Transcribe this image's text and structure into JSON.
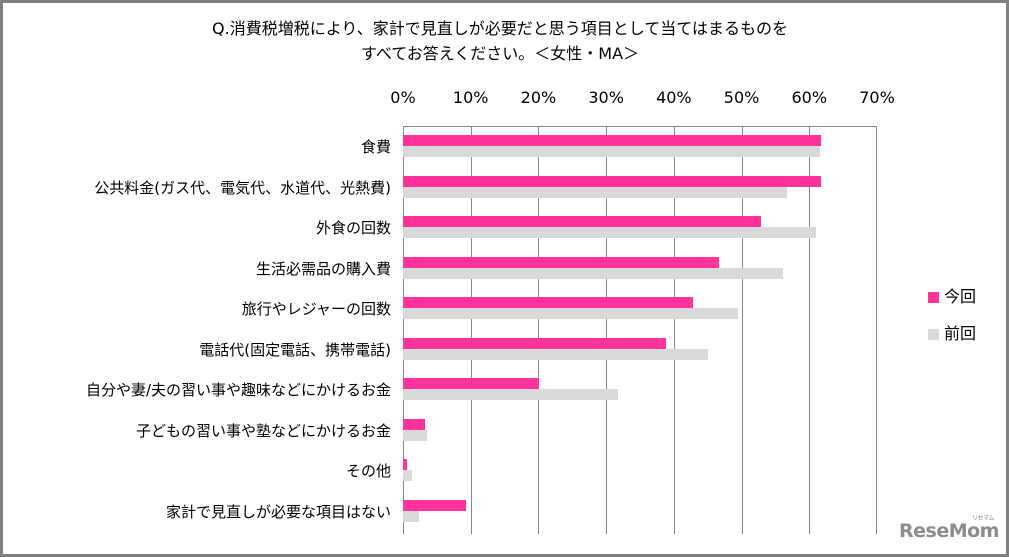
{
  "chart_data": {
    "type": "bar",
    "orientation": "horizontal",
    "title": "Q.消費税増税により、家計で見直しが必要だと思う項目として当てはまるものをすべてお答えください。＜女性・MA＞",
    "title_lines": [
      "Q.消費税増税により、家計で見直しが必要だと思う項目として当てはまるものを",
      "すべてお答えください。＜女性・MA＞"
    ],
    "xlabel": "",
    "ylabel": "",
    "xlim": [
      0,
      70
    ],
    "x_ticks": [
      "0%",
      "10%",
      "20%",
      "30%",
      "40%",
      "50%",
      "60%",
      "70%"
    ],
    "x_axis_position": "top",
    "grid": true,
    "legend_position": "right",
    "categories": [
      "食費",
      "公共料金(ガス代、電気代、水道代、光熱費)",
      "外食の回数",
      "生活必需品の購入費",
      "旅行やレジャーの回数",
      "電話代(固定電話、携帯電話)",
      "自分や妻/夫の習い事や趣味などにかけるお金",
      "子どもの習い事や塾などにかけるお金",
      "その他",
      "家計で見直しが必要な項目はない"
    ],
    "series": [
      {
        "name": "今回",
        "color": "#FF3399",
        "values": [
          61.8,
          61.8,
          52.8,
          46.7,
          42.8,
          38.9,
          20.1,
          3.2,
          0.6,
          9.3
        ]
      },
      {
        "name": "前回",
        "color": "#D9D9D9",
        "values": [
          61.6,
          56.7,
          61.0,
          56.1,
          49.4,
          45.1,
          31.7,
          3.6,
          1.3,
          2.4
        ]
      }
    ],
    "unit": "%"
  },
  "watermark": {
    "text": "ReseMom",
    "kana": "リセマム"
  }
}
